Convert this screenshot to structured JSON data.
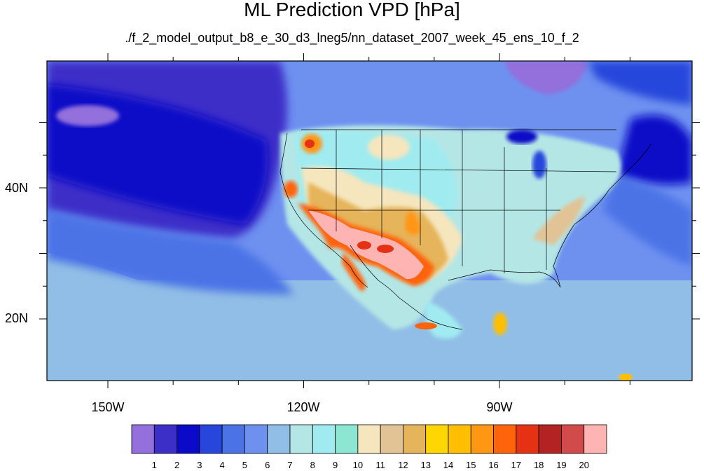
{
  "title": "ML Prediction VPD [hPa]",
  "subtitle": "./f_2_model_output_b8_e_30_d3_lneg5/nn_dataset_2007_week_45_ens_10_f_2",
  "axes": {
    "lon_labels": [
      "150W",
      "120W",
      "90W"
    ],
    "lat_labels": [
      "40N",
      "20N"
    ]
  },
  "colorbar": {
    "labels": [
      "1",
      "2",
      "3",
      "4",
      "5",
      "6",
      "7",
      "8",
      "9",
      "10",
      "11",
      "12",
      "13",
      "14",
      "15",
      "16",
      "17",
      "18",
      "19",
      "20"
    ],
    "colors": [
      "#9370db",
      "#3c2fc8",
      "#0a0ac8",
      "#2846dc",
      "#4b73e6",
      "#6e91f0",
      "#91bee6",
      "#b4e6e6",
      "#a0ebf0",
      "#8ce6d2",
      "#f5e6be",
      "#e1c396",
      "#e6b45a",
      "#ffd700",
      "#ffbe00",
      "#ff9614",
      "#ff640a",
      "#e63214",
      "#b42323",
      "#d24b4b",
      "#ffb4b4"
    ]
  }
}
